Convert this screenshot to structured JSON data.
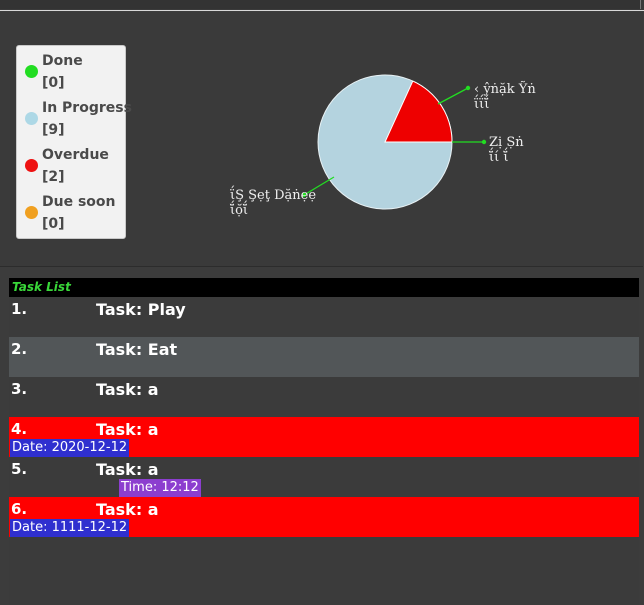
{
  "legend": {
    "items": [
      {
        "label": "Done",
        "count": "[0]",
        "color": "#22dd22"
      },
      {
        "label": "In Progress",
        "count": "[9]",
        "color": "#add8e6"
      },
      {
        "label": "Overdue",
        "count": "[2]",
        "color": "#ee1111"
      },
      {
        "label": "Due soon",
        "count": "[0]",
        "color": "#f0a020"
      }
    ]
  },
  "chart_data": {
    "type": "pie",
    "title": "",
    "slices": [
      {
        "name": "Done",
        "value": 0,
        "color": "#22dd22"
      },
      {
        "name": "In Progress",
        "value": 9,
        "color": "#add8e6"
      },
      {
        "name": "Overdue",
        "value": 2,
        "color": "#ee1111"
      },
      {
        "name": "Due soon",
        "value": 0,
        "color": "#f0a020"
      }
    ],
    "labels": [
      {
        "line1": "‹ ŷṅặk Ỹṅ",
        "line2": "ΐΐΐ̆"
      },
      {
        "line1": "Zị Ṣṅ",
        "line2": "ΐ̆ί ΐ̆"
      },
      {
        "line1": "ΐŞ Şẹţ Dặṅẹẹ",
        "line2": "ΐ̆ọ̆ΐ̆"
      }
    ]
  },
  "tasks": {
    "header": "Task List",
    "rows": [
      {
        "num": "1.",
        "name": "Task: Play",
        "bg": "#3b3b3b"
      },
      {
        "num": "2.",
        "name": "Task: Eat",
        "bg": "#525658"
      },
      {
        "num": "3.",
        "name": "Task: a",
        "bg": "#3b3b3b"
      },
      {
        "num": "4.",
        "name": "Task: a",
        "bg": "#ff0000",
        "date": "Date: 2020-12-12"
      },
      {
        "num": "5.",
        "name": "Task: a",
        "bg": "#3b3b3b",
        "time": "Time: 12:12"
      },
      {
        "num": "6.",
        "name": "Task: a",
        "bg": "#ff0000",
        "date": "Date: 1111-12-12"
      }
    ]
  }
}
